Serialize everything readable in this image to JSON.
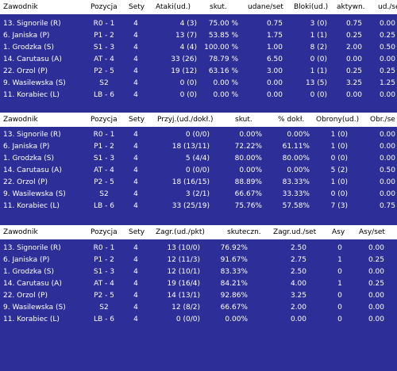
{
  "tables": [
    {
      "headers": [
        "Zawodnik",
        "Pozycja",
        "Sety",
        "Ataki(ud.)",
        "skut.",
        "udane/set",
        "Bloki(ud.)",
        "aktywn.",
        "ud./se"
      ],
      "rows": [
        [
          "13. Signorile (R)",
          "R0 - 1",
          "4",
          "4 (3)",
          "75.00 %",
          "0.75",
          "3 (0)",
          "0.75",
          "0.00"
        ],
        [
          "6. Janiska (P)",
          "P1 - 2",
          "4",
          "13 (7)",
          "53.85 %",
          "1.75",
          "1 (1)",
          "0.25",
          "0.25"
        ],
        [
          "1. Grodzka (S)",
          "S1 - 3",
          "4",
          "4 (4)",
          "100.00 %",
          "1.00",
          "8 (2)",
          "2.00",
          "0.50"
        ],
        [
          "14. Carutasu (A)",
          "AT - 4",
          "4",
          "33 (26)",
          "78.79 %",
          "6.50",
          "0 (0)",
          "0.00",
          "0.00"
        ],
        [
          "22. Orzol (P)",
          "P2 - 5",
          "4",
          "19 (12)",
          "63.16 %",
          "3.00",
          "1 (1)",
          "0.25",
          "0.25"
        ],
        [
          "9. Wasilewska (S)",
          "S2",
          "4",
          "0 (0)",
          "0.00 %",
          "0.00",
          "13 (5)",
          "3.25",
          "1.25"
        ],
        [
          "11. Korabiec (L)",
          "LB - 6",
          "4",
          "0 (0)",
          "0.00 %",
          "0.00",
          "0 (0)",
          "0.00",
          "0.00"
        ]
      ]
    },
    {
      "headers": [
        "Zawodnik",
        "Pozycja",
        "Sety",
        "Przyj.(ud./dokł.)",
        "skut.",
        "% dokł.",
        "Obrony(ud.)",
        "Obr./se"
      ],
      "rows": [
        [
          "13. Signorile (R)",
          "R0 - 1",
          "4",
          "0 (0/0)",
          "0.00%",
          "0.00%",
          "1 (0)",
          "0.00"
        ],
        [
          "6. Janiska (P)",
          "P1 - 2",
          "4",
          "18 (13/11)",
          "72.22%",
          "61.11%",
          "1 (0)",
          "0.00"
        ],
        [
          "1. Grodzka (S)",
          "S1 - 3",
          "4",
          "5 (4/4)",
          "80.00%",
          "80.00%",
          "0 (0)",
          "0.00"
        ],
        [
          "14. Carutasu (A)",
          "AT - 4",
          "4",
          "0 (0/0)",
          "0.00%",
          "0.00%",
          "5 (2)",
          "0.50"
        ],
        [
          "22. Orzol (P)",
          "P2 - 5",
          "4",
          "18 (16/15)",
          "88.89%",
          "83.33%",
          "1 (0)",
          "0.00"
        ],
        [
          "9. Wasilewska (S)",
          "S2",
          "4",
          "3 (2/1)",
          "66.67%",
          "33.33%",
          "0 (0)",
          "0.00"
        ],
        [
          "11. Korabiec (L)",
          "LB - 6",
          "4",
          "33 (25/19)",
          "75.76%",
          "57.58%",
          "7 (3)",
          "0.75"
        ]
      ]
    },
    {
      "headers": [
        "Zawodnik",
        "Pozycja",
        "Sety",
        "Zagr.(ud./pkt)",
        "skuteczn.",
        "Zagr.ud./set",
        "Asy",
        "Asy/set"
      ],
      "rows": [
        [
          "13. Signorile (R)",
          "R0 - 1",
          "4",
          "13 (10/0)",
          "76.92%",
          "2.50",
          "0",
          "0.00"
        ],
        [
          "6. Janiska (P)",
          "P1 - 2",
          "4",
          "12 (11/3)",
          "91.67%",
          "2.75",
          "1",
          "0.25"
        ],
        [
          "1. Grodzka (S)",
          "S1 - 3",
          "4",
          "12 (10/1)",
          "83.33%",
          "2.50",
          "0",
          "0.00"
        ],
        [
          "14. Carutasu (A)",
          "AT - 4",
          "4",
          "19 (16/4)",
          "84.21%",
          "4.00",
          "1",
          "0.25"
        ],
        [
          "22. Orzol (P)",
          "P2 - 5",
          "4",
          "14 (13/1)",
          "92.86%",
          "3.25",
          "0",
          "0.00"
        ],
        [
          "9. Wasilewska (S)",
          "S2",
          "4",
          "12 (8/2)",
          "66.67%",
          "2.00",
          "0",
          "0.00"
        ],
        [
          "11. Korabiec (L)",
          "LB - 6",
          "4",
          "0 (0/0)",
          "0.00%",
          "0.00",
          "0",
          "0.00"
        ]
      ]
    }
  ]
}
